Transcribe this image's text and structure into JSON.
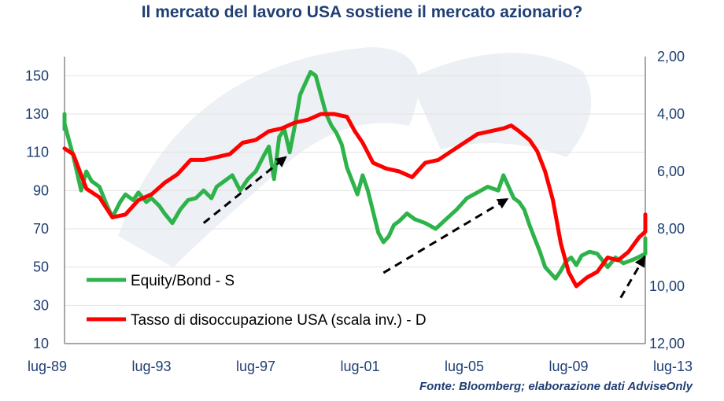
{
  "chart_data": {
    "type": "line",
    "title": "Il mercato del lavoro USA sostiene il mercato azionario?",
    "source": "Fonte: Bloomberg; elaborazione dati AdviseOnly",
    "x_tick_labels": [
      "lug-89",
      "lug-93",
      "lug-97",
      "lug-01",
      "lug-05",
      "lug-09",
      "lug-13"
    ],
    "x_tick_years": [
      1989.5,
      1993.5,
      1997.5,
      2001.5,
      2005.5,
      2009.5,
      2013.5
    ],
    "xlim": [
      1989.5,
      2013.5
    ],
    "y_left": {
      "ticks": [
        "10",
        "30",
        "50",
        "70",
        "90",
        "110",
        "130",
        "150"
      ],
      "ylim": [
        10,
        160
      ]
    },
    "y_right": {
      "ticks": [
        "2,00",
        "4,00",
        "6,00",
        "8,00",
        "10,00",
        "12,00"
      ],
      "ylim": [
        2,
        12
      ],
      "inverted": true
    },
    "legend_position": "bottom-left",
    "series": [
      {
        "name": "Equity/Bond - S",
        "axis": "left",
        "color": "#2db34a",
        "x": [
          1989.5,
          1989.7,
          1990.0,
          1990.3,
          1990.5,
          1990.8,
          1991.0,
          1991.2,
          1991.5,
          1991.8,
          1992.0,
          1992.3,
          1992.5,
          1992.8,
          1993.0,
          1993.3,
          1993.5,
          1993.8,
          1994.0,
          1994.3,
          1994.6,
          1994.9,
          1995.2,
          1995.5,
          1995.8,
          1996.0,
          1996.3,
          1996.6,
          1996.9,
          1997.2,
          1997.5,
          1997.8,
          1998.0,
          1998.2,
          1998.4,
          1998.6,
          1998.8,
          1999.0,
          1999.2,
          1999.4,
          1999.6,
          1999.8,
          2000.0,
          2000.2,
          2000.4,
          2000.6,
          2000.8,
          2001.0,
          2001.2,
          2001.4,
          2001.6,
          2001.8,
          2002.0,
          2002.2,
          2002.4,
          2002.6,
          2002.8,
          2003.0,
          2003.3,
          2003.6,
          2004.0,
          2004.4,
          2004.8,
          2005.2,
          2005.6,
          2006.0,
          2006.4,
          2006.8,
          2007.0,
          2007.2,
          2007.4,
          2007.6,
          2007.8,
          2008.0,
          2008.2,
          2008.4,
          2008.6,
          2008.8,
          2009.0,
          2009.2,
          2009.4,
          2009.6,
          2009.8,
          2010.0,
          2010.3,
          2010.6,
          2011.0,
          2011.3,
          2011.6,
          2012.0,
          2012.3,
          2012.6,
          2013.0,
          2013.3,
          2013.5
        ],
        "y": [
          122,
          130,
          125,
          118,
          108,
          90,
          100,
          95,
          92,
          82,
          76,
          84,
          88,
          85,
          89,
          84,
          86,
          82,
          78,
          73,
          80,
          85,
          86,
          90,
          86,
          92,
          95,
          98,
          90,
          96,
          100,
          108,
          113,
          96,
          118,
          122,
          110,
          124,
          140,
          146,
          152,
          150,
          140,
          130,
          124,
          120,
          114,
          102,
          95,
          88,
          98,
          90,
          79,
          68,
          63,
          66,
          72,
          74,
          78,
          75,
          73,
          70,
          75,
          80,
          86,
          89,
          92,
          90,
          98,
          92,
          86,
          84,
          80,
          72,
          65,
          58,
          50,
          47,
          44,
          48,
          53,
          55,
          51,
          56,
          58,
          57,
          50,
          55,
          52,
          54,
          56,
          57,
          58,
          61,
          65
        ]
      },
      {
        "name": "Tasso di disoccupazione USA (scala inv.) - D",
        "axis": "right",
        "color": "#ff0000",
        "x": [
          1989.5,
          1990.0,
          1990.5,
          1991.0,
          1991.5,
          1992.0,
          1992.5,
          1993.0,
          1993.5,
          1994.0,
          1994.5,
          1995.0,
          1995.5,
          1996.0,
          1996.5,
          1997.0,
          1997.5,
          1998.0,
          1998.5,
          1999.0,
          1999.5,
          2000.0,
          2000.5,
          2001.0,
          2001.3,
          2001.6,
          2002.0,
          2002.5,
          2003.0,
          2003.5,
          2004.0,
          2004.5,
          2005.0,
          2005.5,
          2006.0,
          2006.5,
          2007.0,
          2007.3,
          2007.6,
          2008.0,
          2008.3,
          2008.6,
          2008.9,
          2009.2,
          2009.5,
          2009.8,
          2010.2,
          2010.6,
          2011.0,
          2011.4,
          2011.8,
          2012.2,
          2012.6,
          2013.0,
          2013.3,
          2013.5
        ],
        "y": [
          5.2,
          5.2,
          5.4,
          6.6,
          6.9,
          7.6,
          7.5,
          7.0,
          6.8,
          6.4,
          6.1,
          5.6,
          5.6,
          5.5,
          5.4,
          5.0,
          4.9,
          4.6,
          4.5,
          4.3,
          4.2,
          4.0,
          4.0,
          4.1,
          4.6,
          5.0,
          5.7,
          5.9,
          6.0,
          6.2,
          5.7,
          5.6,
          5.3,
          5.0,
          4.7,
          4.6,
          4.5,
          4.4,
          4.6,
          4.9,
          5.3,
          6.0,
          7.0,
          8.5,
          9.5,
          10.0,
          9.7,
          9.5,
          9.0,
          9.1,
          8.8,
          8.3,
          8.1,
          7.8,
          7.5,
          7.5
        ]
      }
    ],
    "annotations": [
      {
        "type": "dashed-arrow",
        "from": [
          1995.5,
          73
        ],
        "to": [
          1998.7,
          108
        ]
      },
      {
        "type": "dashed-arrow",
        "from": [
          2002.4,
          47
        ],
        "to": [
          2007.2,
          86
        ]
      },
      {
        "type": "dashed-arrow",
        "from": [
          2011.5,
          34
        ],
        "to": [
          2013.7,
          56
        ]
      }
    ]
  }
}
